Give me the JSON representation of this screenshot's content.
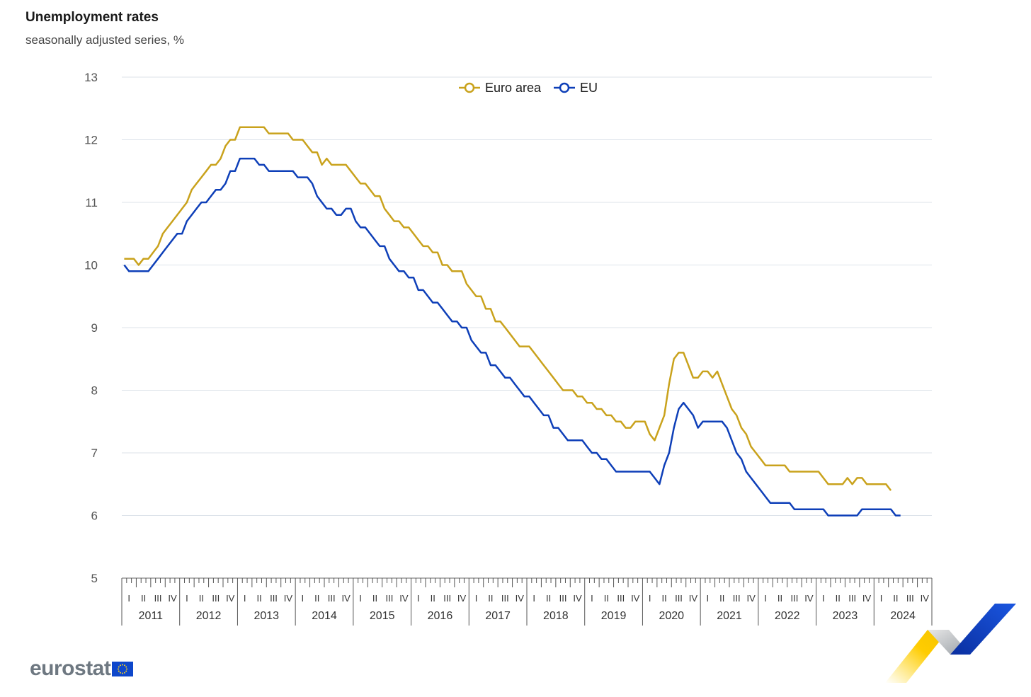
{
  "header": {
    "title": "Unemployment rates",
    "subtitle": "seasonally adjusted series, %"
  },
  "logo": {
    "text": "eurostat"
  },
  "colors": {
    "euro_area": "#c9a21c",
    "eu": "#0e3fb8",
    "grid": "#dde3ea",
    "axis_text": "#555555"
  },
  "chart_data": {
    "type": "line",
    "title": "Unemployment rates",
    "subtitle": "seasonally adjusted series, %",
    "xlabel": "",
    "ylabel": "",
    "ylim": [
      5,
      13
    ],
    "yticks": [
      5,
      6,
      7,
      8,
      9,
      10,
      11,
      12,
      13
    ],
    "grid": true,
    "legend_position": "top-center",
    "x_start": "2011-01",
    "x_frequency": "monthly",
    "years": [
      "2011",
      "2012",
      "2013",
      "2014",
      "2015",
      "2016",
      "2017",
      "2018",
      "2019",
      "2020",
      "2021",
      "2022",
      "2023",
      "2024"
    ],
    "quarter_labels": [
      "I",
      "II",
      "III",
      "IV"
    ],
    "series": [
      {
        "name": "Euro area",
        "color": "#c9a21c",
        "values": [
          10.1,
          10.1,
          10.1,
          10.0,
          10.1,
          10.1,
          10.2,
          10.3,
          10.5,
          10.6,
          10.7,
          10.8,
          10.9,
          11.0,
          11.2,
          11.3,
          11.4,
          11.5,
          11.6,
          11.6,
          11.7,
          11.9,
          12.0,
          12.0,
          12.2,
          12.2,
          12.2,
          12.2,
          12.2,
          12.2,
          12.1,
          12.1,
          12.1,
          12.1,
          12.1,
          12.0,
          12.0,
          12.0,
          11.9,
          11.8,
          11.8,
          11.6,
          11.7,
          11.6,
          11.6,
          11.6,
          11.6,
          11.5,
          11.4,
          11.3,
          11.3,
          11.2,
          11.1,
          11.1,
          10.9,
          10.8,
          10.7,
          10.7,
          10.6,
          10.6,
          10.5,
          10.4,
          10.3,
          10.3,
          10.2,
          10.2,
          10.0,
          10.0,
          9.9,
          9.9,
          9.9,
          9.7,
          9.6,
          9.5,
          9.5,
          9.3,
          9.3,
          9.1,
          9.1,
          9.0,
          8.9,
          8.8,
          8.7,
          8.7,
          8.7,
          8.6,
          8.5,
          8.4,
          8.3,
          8.2,
          8.1,
          8.0,
          8.0,
          8.0,
          7.9,
          7.9,
          7.8,
          7.8,
          7.7,
          7.7,
          7.6,
          7.6,
          7.5,
          7.5,
          7.4,
          7.4,
          7.5,
          7.5,
          7.5,
          7.3,
          7.2,
          7.4,
          7.6,
          8.1,
          8.5,
          8.6,
          8.6,
          8.4,
          8.2,
          8.2,
          8.3,
          8.3,
          8.2,
          8.3,
          8.1,
          7.9,
          7.7,
          7.6,
          7.4,
          7.3,
          7.1,
          7.0,
          6.9,
          6.8,
          6.8,
          6.8,
          6.8,
          6.8,
          6.7,
          6.7,
          6.7,
          6.7,
          6.7,
          6.7,
          6.7,
          6.6,
          6.5,
          6.5,
          6.5,
          6.5,
          6.6,
          6.5,
          6.6,
          6.6,
          6.5,
          6.5,
          6.5,
          6.5,
          6.5,
          6.4
        ]
      },
      {
        "name": "EU",
        "color": "#0e3fb8",
        "values": [
          10.0,
          9.9,
          9.9,
          9.9,
          9.9,
          9.9,
          10.0,
          10.1,
          10.2,
          10.3,
          10.4,
          10.5,
          10.5,
          10.7,
          10.8,
          10.9,
          11.0,
          11.0,
          11.1,
          11.2,
          11.2,
          11.3,
          11.5,
          11.5,
          11.7,
          11.7,
          11.7,
          11.7,
          11.6,
          11.6,
          11.5,
          11.5,
          11.5,
          11.5,
          11.5,
          11.5,
          11.4,
          11.4,
          11.4,
          11.3,
          11.1,
          11.0,
          10.9,
          10.9,
          10.8,
          10.8,
          10.9,
          10.9,
          10.7,
          10.6,
          10.6,
          10.5,
          10.4,
          10.3,
          10.3,
          10.1,
          10.0,
          9.9,
          9.9,
          9.8,
          9.8,
          9.6,
          9.6,
          9.5,
          9.4,
          9.4,
          9.3,
          9.2,
          9.1,
          9.1,
          9.0,
          9.0,
          8.8,
          8.7,
          8.6,
          8.6,
          8.4,
          8.4,
          8.3,
          8.2,
          8.2,
          8.1,
          8.0,
          7.9,
          7.9,
          7.8,
          7.7,
          7.6,
          7.6,
          7.4,
          7.4,
          7.3,
          7.2,
          7.2,
          7.2,
          7.2,
          7.1,
          7.0,
          7.0,
          6.9,
          6.9,
          6.8,
          6.7,
          6.7,
          6.7,
          6.7,
          6.7,
          6.7,
          6.7,
          6.7,
          6.6,
          6.5,
          6.8,
          7.0,
          7.4,
          7.7,
          7.8,
          7.7,
          7.6,
          7.4,
          7.5,
          7.5,
          7.5,
          7.5,
          7.5,
          7.4,
          7.2,
          7.0,
          6.9,
          6.7,
          6.6,
          6.5,
          6.4,
          6.3,
          6.2,
          6.2,
          6.2,
          6.2,
          6.2,
          6.1,
          6.1,
          6.1,
          6.1,
          6.1,
          6.1,
          6.1,
          6.0,
          6.0,
          6.0,
          6.0,
          6.0,
          6.0,
          6.0,
          6.1,
          6.1,
          6.1,
          6.1,
          6.1,
          6.1,
          6.1,
          6.0,
          6.0
        ]
      }
    ]
  }
}
